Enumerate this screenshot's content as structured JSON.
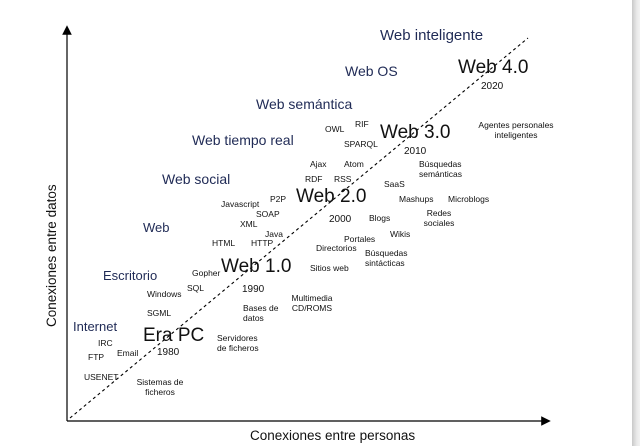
{
  "axes": {
    "x_label": "Conexiones entre personas",
    "y_label": "Conexiones entre datos"
  },
  "eras": [
    "Internet",
    "Escritorio",
    "Web",
    "Web social",
    "Web tiempo real",
    "Web semántica",
    "Web OS",
    "Web inteligente"
  ],
  "milestones": [
    {
      "name": "Era PC",
      "year": "1980"
    },
    {
      "name": "Web 1.0",
      "year": "1990"
    },
    {
      "name": "Web 2.0",
      "year": "2000"
    },
    {
      "name": "Web 3.0",
      "year": "2010"
    },
    {
      "name": "Web 4.0",
      "year": "2020"
    }
  ],
  "technologies": {
    "irc": "IRC",
    "ftp": "FTP",
    "email": "Email",
    "usenet": "USENET",
    "sistemas_ficheros": "Sistemas de ficheros",
    "windows": "Windows",
    "sgml": "SGML",
    "sql": "SQL",
    "gopher": "Gopher",
    "servidores_ficheros": "Servidores de ficheros",
    "bases_datos": "Bases de datos",
    "multimedia": "Multimedia CD/ROMS",
    "html": "HTML",
    "http": "HTTP",
    "java": "Java",
    "xml": "XML",
    "soap": "SOAP",
    "javascript": "Javascript",
    "p2p": "P2P",
    "sitios_web": "Sitios web",
    "directorios": "Directorios",
    "portales": "Portales",
    "busquedas_sintacticas": "Búsquedas sintácticas",
    "wikis": "Wikis",
    "blogs": "Blogs",
    "redes_sociales": "Redes sociales",
    "mashups": "Mashups",
    "microblogs": "Microblogs",
    "saas": "SaaS",
    "rdf": "RDF",
    "rss": "RSS",
    "ajax": "Ajax",
    "atom": "Atom",
    "busquedas_semanticas": "Búsquedas semánticas",
    "owl": "OWL",
    "rif": "RIF",
    "sparql": "SPARQL",
    "agentes": "Agentes personales inteligentes"
  }
}
